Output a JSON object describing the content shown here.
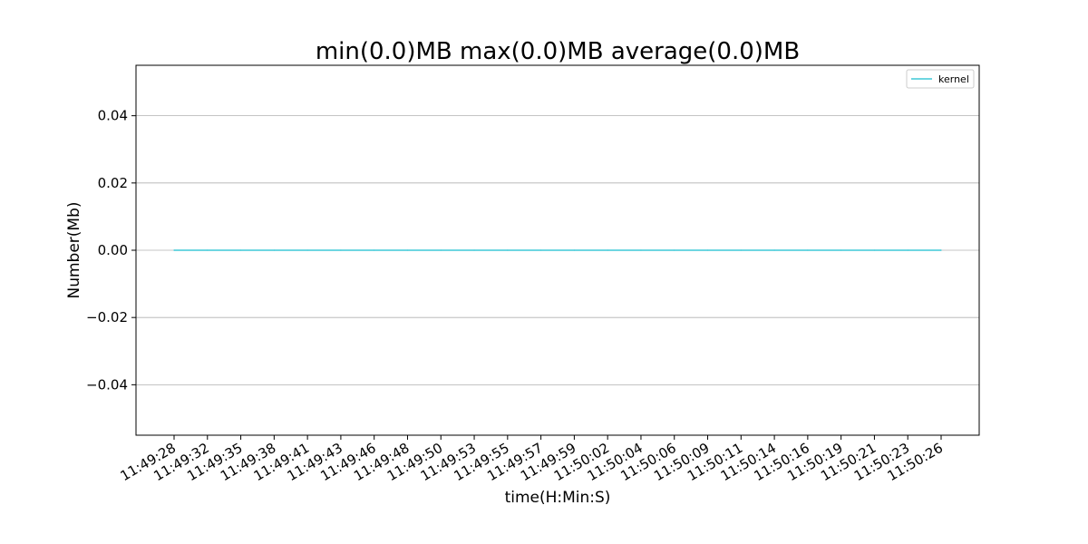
{
  "chart_data": {
    "type": "line",
    "title": "min(0.0)MB max(0.0)MB average(0.0)MB",
    "xlabel": "time(H:Min:S)",
    "ylabel": "Number(Mb)",
    "ylim": [
      -0.055,
      0.055
    ],
    "yticks": [
      -0.04,
      -0.02,
      0.0,
      0.02,
      0.04
    ],
    "ytick_labels": [
      "−0.04",
      "−0.02",
      "0.00",
      "0.02",
      "0.04"
    ],
    "categories": [
      "11:49:28",
      "11:49:32",
      "11:49:35",
      "11:49:38",
      "11:49:41",
      "11:49:43",
      "11:49:46",
      "11:49:48",
      "11:49:50",
      "11:49:53",
      "11:49:55",
      "11:49:57",
      "11:49:59",
      "11:50:02",
      "11:50:04",
      "11:50:06",
      "11:50:09",
      "11:50:11",
      "11:50:14",
      "11:50:16",
      "11:50:19",
      "11:50:21",
      "11:50:23",
      "11:50:26"
    ],
    "series": [
      {
        "name": "kernel",
        "color": "#17becf",
        "values": [
          0,
          0,
          0,
          0,
          0,
          0,
          0,
          0,
          0,
          0,
          0,
          0,
          0,
          0,
          0,
          0,
          0,
          0,
          0,
          0,
          0,
          0,
          0,
          0
        ]
      }
    ],
    "grid": "y",
    "legend_position": "top-right"
  }
}
